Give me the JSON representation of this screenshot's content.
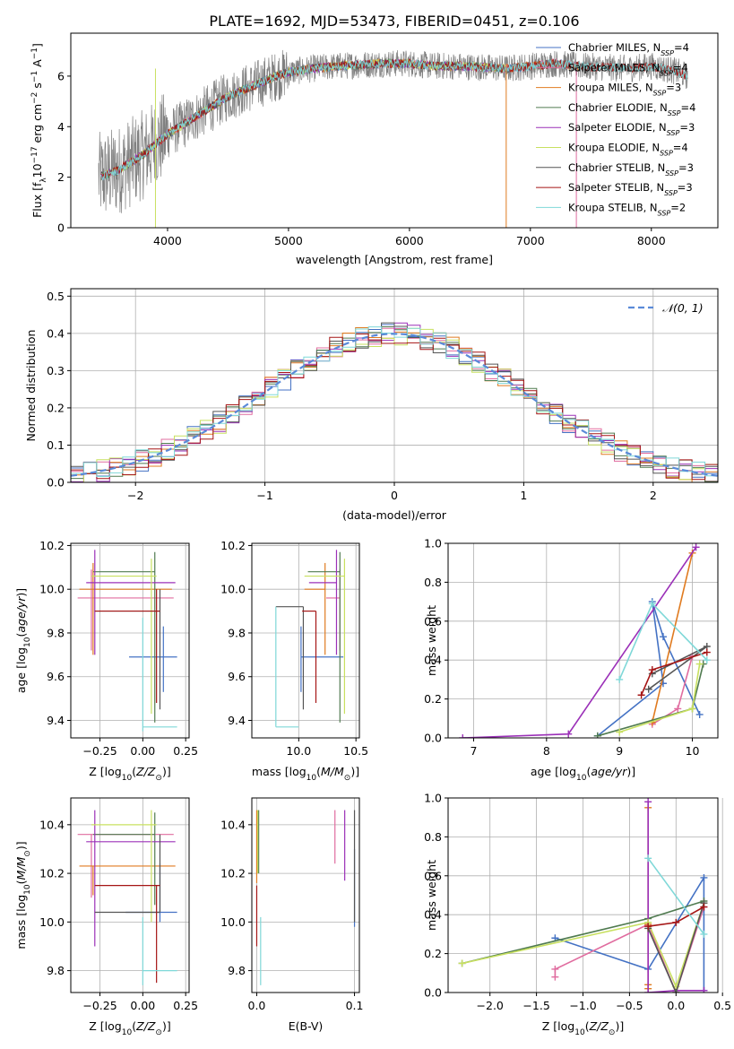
{
  "figure_title": "PLATE=1692, MJD=53473, FIBERID=0451, z=0.106",
  "colors": {
    "Chabrier MILES": "#4472c4",
    "Salpeter MILES": "#e06c9f",
    "Kroupa MILES": "#e07b20",
    "Chabrier ELODIE": "#507b50",
    "Salpeter ELODIE": "#9b30b8",
    "Kroupa ELODIE": "#c8e060",
    "Chabrier STELIB": "#555555",
    "Salpeter STELIB": "#a51515",
    "Kroupa STELIB": "#7fd8d8",
    "data": "#808080",
    "normal": "#5a8ad8"
  },
  "chart_data": [
    {
      "type": "line",
      "id": "spectrum",
      "xlabel": "wavelength [Angstrom, rest frame]",
      "ylabel": "Flux [f_λ10^-17 erg cm^-2 s^-1 A^-1]",
      "xlim": [
        3200,
        8550
      ],
      "ylim": [
        0,
        7.7
      ],
      "xticks": [
        4000,
        5000,
        6000,
        7000,
        8000
      ],
      "yticks": [
        0,
        2,
        4,
        6
      ],
      "legend_position": "top-right",
      "legend": [
        {
          "label": "Chabrier MILES",
          "n": "4"
        },
        {
          "label": "Salpeter MILES",
          "n": "4"
        },
        {
          "label": "Kroupa MILES",
          "n": "3"
        },
        {
          "label": "Chabrier ELODIE",
          "n": "4"
        },
        {
          "label": "Salpeter ELODIE",
          "n": "3"
        },
        {
          "label": "Kroupa ELODIE",
          "n": "4"
        },
        {
          "label": "Chabrier STELIB",
          "n": "3"
        },
        {
          "label": "Salpeter STELIB",
          "n": "3"
        },
        {
          "label": "Kroupa STELIB",
          "n": "2"
        }
      ],
      "continuum": {
        "x": [
          3430,
          3500,
          3600,
          3700,
          3800,
          3900,
          4000,
          4100,
          4200,
          4300,
          4400,
          4500,
          4600,
          4700,
          4800,
          4900,
          5000,
          5200,
          5400,
          5600,
          5800,
          6000,
          6200,
          6400,
          6600,
          6800,
          7000,
          7200,
          7400,
          7600,
          7800,
          8000,
          8200,
          8300
        ],
        "y": [
          2.0,
          2.1,
          2.3,
          2.6,
          2.9,
          3.3,
          3.7,
          4.0,
          4.3,
          4.6,
          4.9,
          5.2,
          5.4,
          5.6,
          5.8,
          6.0,
          6.15,
          6.3,
          6.4,
          6.45,
          6.5,
          6.5,
          6.4,
          6.4,
          6.35,
          6.3,
          6.4,
          6.5,
          6.4,
          6.35,
          6.3,
          6.4,
          6.2,
          6.0
        ]
      },
      "grid": false
    },
    {
      "type": "histogram",
      "id": "residuals",
      "xlabel": "(data-model)/error",
      "ylabel": "Normed distribution",
      "xlim": [
        -2.5,
        2.5
      ],
      "ylim": [
        0,
        0.52
      ],
      "xticks": [
        -2,
        -1,
        0,
        1,
        2
      ],
      "yticks": [
        0.0,
        0.1,
        0.2,
        0.3,
        0.4,
        0.5
      ],
      "bin_width": 0.1,
      "legend": "𝒩(0, 1)",
      "legend_position": "top-right",
      "grid": true
    },
    {
      "type": "scatter",
      "id": "age_vs_z",
      "xlabel": "Z [log10(Z/Z⊙)]",
      "ylabel": "age [log10(age/yr)]",
      "xlim": [
        -0.42,
        0.27
      ],
      "ylim": [
        9.32,
        10.21
      ],
      "xticks": [
        -0.25,
        0.0,
        0.25
      ],
      "yticks": [
        9.4,
        9.6,
        9.8,
        10.0,
        10.2
      ],
      "points": [
        {
          "model": "Chabrier MILES",
          "x": 0.12,
          "xerr": [
            0.2,
            0.08
          ],
          "y": 9.69,
          "yerr": [
            0.16,
            0.14
          ]
        },
        {
          "model": "Salpeter MILES",
          "x": -0.3,
          "xerr": [
            0.08,
            0.48
          ],
          "y": 9.96,
          "yerr": [
            0.24,
            0.13
          ]
        },
        {
          "model": "Kroupa MILES",
          "x": -0.29,
          "xerr": [
            0.08,
            0.46
          ],
          "y": 10.0,
          "yerr": [
            0.3,
            0.12
          ]
        },
        {
          "model": "Chabrier ELODIE",
          "x": 0.07,
          "xerr": [
            0.36,
            0.0
          ],
          "y": 10.08,
          "yerr": [
            0.69,
            0.09
          ]
        },
        {
          "model": "Salpeter ELODIE",
          "x": -0.28,
          "xerr": [
            0.05,
            0.47
          ],
          "y": 10.03,
          "yerr": [
            0.33,
            0.15
          ]
        },
        {
          "model": "Kroupa ELODIE",
          "x": 0.05,
          "xerr": [
            0.35,
            0.03
          ],
          "y": 10.06,
          "yerr": [
            0.63,
            0.08
          ]
        },
        {
          "model": "Chabrier STELIB",
          "x": 0.1,
          "xerr": [
            0.38,
            0.0
          ],
          "y": 9.9,
          "yerr": [
            0.45,
            0.1
          ]
        },
        {
          "model": "Salpeter STELIB",
          "x": 0.08,
          "xerr": [
            0.36,
            0.02
          ],
          "y": 9.9,
          "yerr": [
            0.42,
            0.1
          ]
        },
        {
          "model": "Kroupa STELIB",
          "x": 0.0,
          "xerr": [
            0.0,
            0.2
          ],
          "y": 9.37,
          "yerr": [
            0.02,
            0.5
          ]
        }
      ],
      "grid": true
    },
    {
      "type": "scatter",
      "id": "age_vs_mass",
      "xlabel": "mass [log10(M/M⊙)]",
      "ylabel": "",
      "xlim": [
        9.59,
        10.53
      ],
      "ylim": [
        9.32,
        10.21
      ],
      "xticks": [
        10.0,
        10.5
      ],
      "yticks": [
        9.4,
        9.6,
        9.8,
        10.0,
        10.2
      ],
      "points": [
        {
          "model": "Chabrier MILES",
          "x": 10.02,
          "xerr": [
            0.0,
            0.37
          ],
          "y": 9.69,
          "yerr": [
            0.16,
            0.14
          ]
        },
        {
          "model": "Salpeter MILES",
          "x": 10.36,
          "xerr": [
            0.12,
            0.0
          ],
          "y": 9.96,
          "yerr": [
            0.24,
            0.13
          ]
        },
        {
          "model": "Kroupa MILES",
          "x": 10.23,
          "xerr": [
            0.18,
            0.0
          ],
          "y": 10.0,
          "yerr": [
            0.3,
            0.12
          ]
        },
        {
          "model": "Chabrier ELODIE",
          "x": 10.36,
          "xerr": [
            0.28,
            0.0
          ],
          "y": 10.08,
          "yerr": [
            0.69,
            0.09
          ]
        },
        {
          "model": "Salpeter ELODIE",
          "x": 10.33,
          "xerr": [
            0.24,
            0.0
          ],
          "y": 10.03,
          "yerr": [
            0.33,
            0.15
          ]
        },
        {
          "model": "Kroupa ELODIE",
          "x": 10.4,
          "xerr": [
            0.35,
            0.0
          ],
          "y": 10.06,
          "yerr": [
            0.63,
            0.08
          ]
        },
        {
          "model": "Chabrier STELIB",
          "x": 10.04,
          "xerr": [
            0.24,
            0.0
          ],
          "y": 9.92,
          "yerr": [
            0.47,
            0.0
          ]
        },
        {
          "model": "Salpeter STELIB",
          "x": 10.15,
          "xerr": [
            0.12,
            0.0
          ],
          "y": 9.9,
          "yerr": [
            0.42,
            0.0
          ]
        },
        {
          "model": "Kroupa STELIB",
          "x": 9.8,
          "xerr": [
            0.0,
            0.2
          ],
          "y": 9.37,
          "yerr": [
            0.0,
            0.55
          ]
        }
      ],
      "grid": true
    },
    {
      "type": "line",
      "id": "weight_vs_age",
      "xlabel": "age [log10(age/yr)]",
      "ylabel": "mass weight",
      "xlim": [
        6.65,
        10.35
      ],
      "ylim": [
        0,
        1.0
      ],
      "xticks": [
        7,
        8,
        9,
        10
      ],
      "yticks": [
        0.0,
        0.2,
        0.4,
        0.6,
        0.8,
        1.0
      ],
      "series": [
        {
          "model": "Chabrier MILES",
          "x": [
            8.7,
            9.6,
            9.45,
            9.6,
            10.1
          ],
          "y": [
            0.01,
            0.28,
            0.7,
            0.52,
            0.12
          ]
        },
        {
          "model": "Salpeter MILES",
          "x": [
            9.45,
            9.8,
            10.0
          ],
          "y": [
            0.07,
            0.15,
            0.42
          ]
        },
        {
          "model": "Kroupa MILES",
          "x": [
            9.45,
            10.0,
            9.45
          ],
          "y": [
            0.08,
            0.95,
            0.08
          ]
        },
        {
          "model": "Chabrier ELODIE",
          "x": [
            8.7,
            10.0,
            10.15
          ],
          "y": [
            0.01,
            0.15,
            0.38
          ]
        },
        {
          "model": "Salpeter ELODIE",
          "x": [
            6.85,
            8.3,
            10.05
          ],
          "y": [
            0.0,
            0.02,
            0.98
          ]
        },
        {
          "model": "Kroupa ELODIE",
          "x": [
            9.0,
            10.0,
            10.1
          ],
          "y": [
            0.03,
            0.15,
            0.38
          ]
        },
        {
          "model": "Chabrier STELIB",
          "x": [
            9.45,
            10.2,
            9.4
          ],
          "y": [
            0.33,
            0.47,
            0.25
          ]
        },
        {
          "model": "Salpeter STELIB",
          "x": [
            9.3,
            9.45,
            10.2
          ],
          "y": [
            0.22,
            0.35,
            0.44
          ]
        },
        {
          "model": "Kroupa STELIB",
          "x": [
            9.0,
            9.45,
            10.2
          ],
          "y": [
            0.3,
            0.69,
            0.4
          ]
        }
      ],
      "grid": true
    },
    {
      "type": "scatter",
      "id": "mass_vs_z",
      "xlabel": "Z [log10(Z/Z⊙)]",
      "ylabel": "mass [log10(M/M⊙)]",
      "xlim": [
        -0.42,
        0.27
      ],
      "ylim": [
        9.71,
        10.51
      ],
      "xticks": [
        -0.25,
        0.0,
        0.25
      ],
      "yticks": [
        9.8,
        10.0,
        10.2,
        10.4
      ],
      "points": [
        {
          "model": "Chabrier MILES",
          "x": 0.1,
          "xerr": [
            0.2,
            0.1
          ],
          "y": 10.04,
          "yerr": [
            0.04,
            0.2
          ]
        },
        {
          "model": "Salpeter MILES",
          "x": -0.3,
          "xerr": [
            0.08,
            0.48
          ],
          "y": 10.36,
          "yerr": [
            0.26,
            0.0
          ]
        },
        {
          "model": "Kroupa MILES",
          "x": -0.29,
          "xerr": [
            0.08,
            0.48
          ],
          "y": 10.23,
          "yerr": [
            0.12,
            0.0
          ]
        },
        {
          "model": "Chabrier ELODIE",
          "x": 0.07,
          "xerr": [
            0.36,
            0.0
          ],
          "y": 10.36,
          "yerr": [
            0.29,
            0.09
          ]
        },
        {
          "model": "Salpeter ELODIE",
          "x": -0.28,
          "xerr": [
            0.05,
            0.47
          ],
          "y": 10.33,
          "yerr": [
            0.43,
            0.13
          ]
        },
        {
          "model": "Kroupa ELODIE",
          "x": 0.05,
          "xerr": [
            0.35,
            0.03
          ],
          "y": 10.4,
          "yerr": [
            0.4,
            0.06
          ]
        },
        {
          "model": "Chabrier STELIB",
          "x": 0.1,
          "xerr": [
            0.38,
            0.0
          ],
          "y": 10.04,
          "yerr": [
            0.0,
            0.32
          ]
        },
        {
          "model": "Salpeter STELIB",
          "x": 0.08,
          "xerr": [
            0.36,
            0.02
          ],
          "y": 10.15,
          "yerr": [
            0.4,
            0.0
          ]
        },
        {
          "model": "Kroupa STELIB",
          "x": 0.0,
          "xerr": [
            0.0,
            0.2
          ],
          "y": 9.8,
          "yerr": [
            0.06,
            0.22
          ]
        }
      ],
      "grid": true
    },
    {
      "type": "scatter",
      "id": "mass_vs_ebv",
      "xlabel": "E(B-V)",
      "ylabel": "",
      "xlim": [
        -0.005,
        0.105
      ],
      "ylim": [
        9.71,
        10.51
      ],
      "xticks": [
        0.0,
        0.1
      ],
      "yticks": [
        9.8,
        10.0,
        10.2,
        10.4
      ],
      "points": [
        {
          "model": "Chabrier MILES",
          "x": 0.1,
          "y": 10.14,
          "yerr": [
            0.16,
            0.16
          ]
        },
        {
          "model": "Salpeter MILES",
          "x": 0.08,
          "y": 10.36,
          "yerr": [
            0.12,
            0.1
          ]
        },
        {
          "model": "Kroupa MILES",
          "x": 0.0,
          "y": 10.28,
          "yerr": [
            0.12,
            0.18
          ]
        },
        {
          "model": "Chabrier ELODIE",
          "x": 0.002,
          "y": 10.36,
          "yerr": [
            0.16,
            0.1
          ]
        },
        {
          "model": "Salpeter ELODIE",
          "x": 0.09,
          "y": 10.33,
          "yerr": [
            0.16,
            0.13
          ]
        },
        {
          "model": "Kroupa ELODIE",
          "x": 0.001,
          "y": 10.4,
          "yerr": [
            0.2,
            0.06
          ]
        },
        {
          "model": "Chabrier STELIB",
          "x": 0.1,
          "y": 10.14,
          "yerr": [
            0.14,
            0.32
          ]
        },
        {
          "model": "Salpeter STELIB",
          "x": 0.0,
          "y": 10.15,
          "yerr": [
            0.25,
            0.0
          ]
        },
        {
          "model": "Kroupa STELIB",
          "x": 0.004,
          "y": 9.8,
          "yerr": [
            0.06,
            0.22
          ]
        }
      ],
      "grid": true
    },
    {
      "type": "line",
      "id": "weight_vs_z",
      "xlabel": "Z [log10(Z/Z⊙)]",
      "ylabel": "mass weight",
      "xlim": [
        -2.45,
        0.45
      ],
      "ylim": [
        0,
        1.0
      ],
      "xticks": [
        -2.0,
        -1.5,
        -1.0,
        -0.5,
        0.0,
        0.5
      ],
      "yticks": [
        0.0,
        0.2,
        0.4,
        0.6,
        0.8,
        1.0
      ],
      "series": [
        {
          "model": "Chabrier MILES",
          "x": [
            -1.3,
            -0.3,
            0.3,
            0.3
          ],
          "y": [
            0.28,
            0.12,
            0.59,
            0.01
          ]
        },
        {
          "model": "Salpeter MILES",
          "x": [
            -1.3,
            -1.3,
            -0.3,
            0.0,
            0.3
          ],
          "y": [
            0.08,
            0.12,
            0.35,
            0.0,
            0.44
          ]
        },
        {
          "model": "Kroupa MILES",
          "x": [
            -0.3,
            -0.3,
            -0.3,
            -0.3
          ],
          "y": [
            0.02,
            0.35,
            0.95,
            0.04
          ]
        },
        {
          "model": "Chabrier ELODIE",
          "x": [
            -2.3,
            -0.3,
            0.3
          ],
          "y": [
            0.15,
            0.38,
            0.47
          ]
        },
        {
          "model": "Salpeter ELODIE",
          "x": [
            -0.3,
            -0.3,
            0.0,
            0.3
          ],
          "y": [
            0.98,
            0.0,
            0.01,
            0.01
          ]
        },
        {
          "model": "Kroupa ELODIE",
          "x": [
            -2.3,
            -0.3,
            0.0,
            0.3
          ],
          "y": [
            0.15,
            0.36,
            0.03,
            0.46
          ]
        },
        {
          "model": "Chabrier STELIB",
          "x": [
            -0.3,
            0.0,
            0.3
          ],
          "y": [
            0.33,
            0.0,
            0.46
          ]
        },
        {
          "model": "Salpeter STELIB",
          "x": [
            -0.3,
            0.0,
            0.3
          ],
          "y": [
            0.34,
            0.36,
            0.44
          ]
        },
        {
          "model": "Kroupa STELIB",
          "x": [
            -0.3,
            0.3
          ],
          "y": [
            0.69,
            0.3
          ]
        }
      ],
      "grid": true
    }
  ]
}
